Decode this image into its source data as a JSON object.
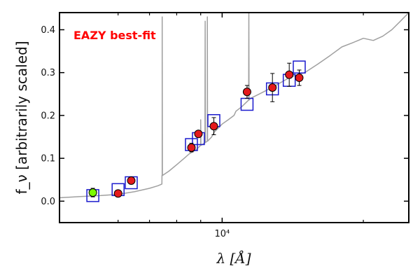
{
  "chart_data": {
    "type": "scatter",
    "title": "",
    "xlabel": "λ [Å]",
    "ylabel": "f_ν [arbitrarily scaled]",
    "xscale": "log",
    "xlim": [
      4500,
      25000
    ],
    "ylim": [
      -0.05,
      0.44
    ],
    "grid": false,
    "yticks": [
      0.0,
      0.1,
      0.2,
      0.3,
      0.4
    ],
    "ytick_labels": [
      "0.0",
      "0.1",
      "0.2",
      "0.3",
      "0.4"
    ],
    "xticks_major": [
      10000
    ],
    "xtick_major_labels": [
      "10⁴"
    ],
    "xticks_minor": [
      6000,
      7000,
      8000,
      9000,
      20000
    ],
    "annotation": {
      "text": "EAZY best-fit",
      "color": "#ff0000",
      "position": "top-left"
    },
    "colors": {
      "sed_line": "#a0a0a0",
      "model_box": "#1a1acd",
      "detection": "#e41a1c",
      "highlight": "#7cfc00",
      "errorbar": "#000000"
    },
    "series": [
      {
        "name": "best-fit SED",
        "kind": "line",
        "x": [
          4500,
          5000,
          5500,
          6000,
          6500,
          7000,
          7300,
          7440,
          7450,
          7700,
          8000,
          8300,
          8500,
          8800,
          9000,
          9300,
          9500,
          9600,
          9800,
          10000,
          10300,
          10600,
          10700,
          11000,
          11500,
          12000,
          12500,
          13000,
          14000,
          15000,
          16000,
          17000,
          18000,
          19000,
          20000,
          21000,
          22000,
          23000,
          24000,
          25000
        ],
        "y": [
          0.008,
          0.011,
          0.013,
          0.016,
          0.022,
          0.03,
          0.036,
          0.04,
          0.06,
          0.07,
          0.085,
          0.1,
          0.11,
          0.12,
          0.13,
          0.14,
          0.15,
          0.16,
          0.17,
          0.18,
          0.19,
          0.2,
          0.21,
          0.22,
          0.24,
          0.25,
          0.26,
          0.27,
          0.29,
          0.3,
          0.32,
          0.34,
          0.36,
          0.37,
          0.38,
          0.375,
          0.385,
          0.4,
          0.42,
          0.44
        ],
        "emission_lines": [
          {
            "x": 7450,
            "peak": 0.43
          },
          {
            "x": 9000,
            "peak": 0.19
          },
          {
            "x": 9200,
            "peak": 0.42
          },
          {
            "x": 9300,
            "peak": 0.43
          },
          {
            "x": 11400,
            "peak": 0.44
          }
        ]
      },
      {
        "name": "model photometry",
        "kind": "open-squares",
        "x": [
          5300,
          6000,
          6400,
          8600,
          8900,
          9600,
          11300,
          12800,
          13900,
          14600
        ],
        "y": [
          0.013,
          0.027,
          0.043,
          0.132,
          0.146,
          0.188,
          0.226,
          0.262,
          0.282,
          0.313
        ]
      },
      {
        "name": "observed photometry",
        "kind": "points",
        "x": [
          5300,
          6000,
          6400,
          8600,
          8900,
          9600,
          11300,
          12800,
          13900,
          14600
        ],
        "y": [
          0.02,
          0.018,
          0.048,
          0.125,
          0.157,
          0.175,
          0.255,
          0.265,
          0.295,
          0.288
        ],
        "yerr": [
          0.01,
          0.004,
          0.008,
          0.01,
          0.006,
          0.02,
          0.015,
          0.033,
          0.027,
          0.018
        ],
        "highlight_index": 0
      }
    ]
  }
}
